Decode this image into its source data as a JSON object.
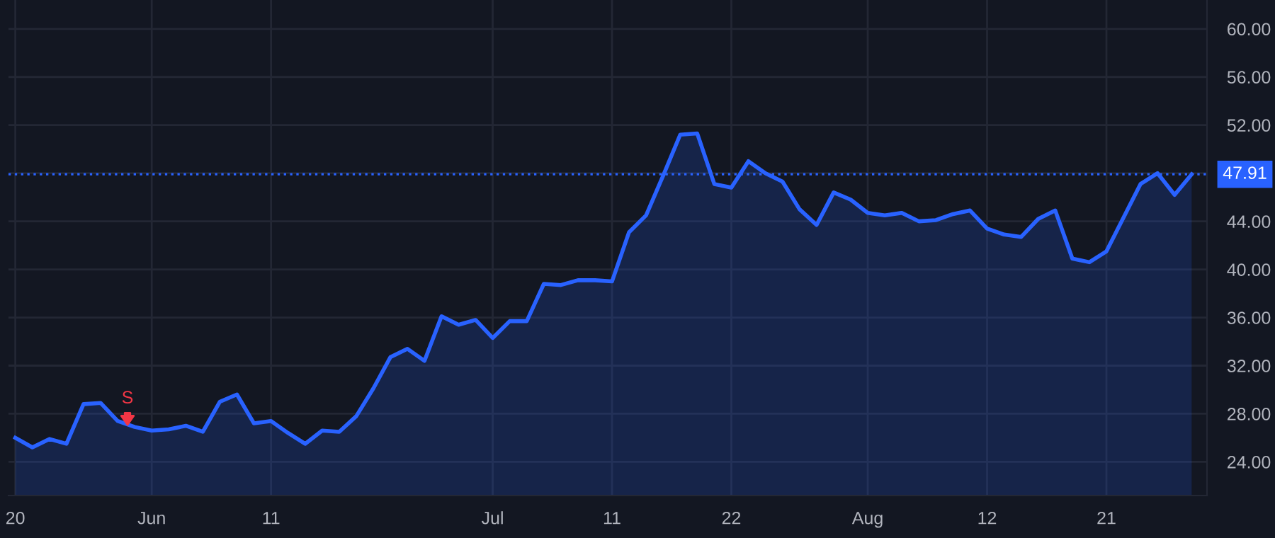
{
  "chart_data": {
    "type": "area",
    "categories": [
      "20",
      null,
      null,
      null,
      null,
      null,
      null,
      null,
      "Jun",
      null,
      null,
      null,
      null,
      null,
      null,
      "11",
      null,
      null,
      null,
      null,
      null,
      null,
      null,
      null,
      null,
      null,
      null,
      null,
      "Jul",
      null,
      null,
      null,
      null,
      null,
      null,
      "11",
      null,
      null,
      null,
      null,
      null,
      null,
      "22",
      null,
      null,
      null,
      null,
      null,
      null,
      null,
      "Aug",
      null,
      null,
      null,
      null,
      null,
      null,
      "12",
      null,
      null,
      null,
      null,
      null,
      null,
      "21",
      null,
      null,
      null,
      null,
      null
    ],
    "series": [
      {
        "color": "#2962ff",
        "values": [
          26.0,
          25.2,
          25.9,
          25.5,
          28.8,
          28.9,
          27.4,
          26.9,
          26.6,
          26.7,
          27.0,
          26.5,
          29.0,
          29.6,
          27.2,
          27.4,
          26.4,
          25.5,
          26.6,
          26.5,
          27.8,
          30.1,
          32.7,
          33.4,
          32.4,
          36.1,
          35.4,
          35.8,
          34.3,
          35.7,
          35.7,
          38.8,
          38.7,
          39.1,
          39.1,
          39.0,
          43.1,
          44.5,
          47.8,
          51.2,
          51.3,
          47.1,
          46.8,
          49.0,
          48.0,
          47.3,
          45.0,
          43.7,
          46.4,
          45.8,
          44.7,
          44.5,
          44.7,
          44.0,
          44.1,
          44.6,
          44.9,
          43.4,
          42.9,
          42.7,
          44.2,
          44.9,
          40.9,
          40.6,
          41.5,
          44.3,
          47.1,
          48.0,
          46.2,
          47.91
        ]
      }
    ],
    "ylim": [
      21.2,
      62.4
    ],
    "yticks": [
      {
        "value": 24,
        "label": "24.00"
      },
      {
        "value": 28,
        "label": "28.00"
      },
      {
        "value": 32,
        "label": "32.00"
      },
      {
        "value": 36,
        "label": "36.00"
      },
      {
        "value": 40,
        "label": "40.00"
      },
      {
        "value": 44,
        "label": "44.00"
      },
      {
        "value": 48,
        "label": null
      },
      {
        "value": 52,
        "label": "52.00"
      },
      {
        "value": 56,
        "label": "56.00"
      },
      {
        "value": 60,
        "label": "60.00"
      }
    ],
    "grid": true,
    "ref_lines": [
      {
        "axis": "y",
        "value": 47.91,
        "label": "47.91",
        "color": "#2962ff",
        "line_style": "dotted"
      }
    ],
    "annotations": [
      "S"
    ]
  }
}
